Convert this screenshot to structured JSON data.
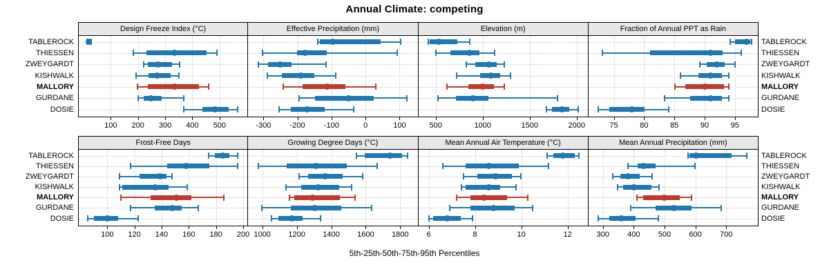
{
  "title": "Annual Climate: competing",
  "xlabel": "5th-25th-50th-75th-95th Percentiles",
  "sites": [
    "TABLEROCK",
    "THIESSEN",
    "ZWEYGARDT",
    "KISHWALK",
    "MALLORY",
    "GURDANE",
    "DOSIE"
  ],
  "highlight_site": "MALLORY",
  "colors": {
    "series_normal": "#1f77b4",
    "series_highlight": "#c0392b",
    "strip_bg": "#e7e7e7",
    "grid": "#c9c9c9",
    "border": "#000000"
  },
  "chart_data": [
    {
      "panel": "Design Freeze Index (°C)",
      "type": "scatter",
      "marker": "5-25-50-75-95 percentile whisker",
      "row": 0,
      "col": 0,
      "xlim": [
        -20,
        605
      ],
      "ticks": [
        100,
        200,
        300,
        400,
        500
      ],
      "series": [
        {
          "name": "TABLEROCK",
          "percentiles": [
            12,
            15,
            20,
            25,
            29
          ]
        },
        {
          "name": "THIESSEN",
          "percentiles": [
            183,
            232,
            334,
            453,
            491
          ]
        },
        {
          "name": "ZWEYGARDT",
          "percentiles": [
            219,
            236,
            272,
            325,
            355
          ]
        },
        {
          "name": "KISHWALK",
          "percentiles": [
            192,
            240,
            270,
            319,
            352
          ]
        },
        {
          "name": "MALLORY",
          "percentiles": [
            196,
            236,
            334,
            423,
            461
          ]
        },
        {
          "name": "GURDANE",
          "percentiles": [
            200,
            221,
            249,
            287,
            370
          ]
        },
        {
          "name": "DOSIE",
          "percentiles": [
            367,
            437,
            483,
            534,
            567
          ]
        }
      ]
    },
    {
      "panel": "Effective Precipitation (mm)",
      "type": "scatter",
      "marker": "5-25-50-75-95 percentile whisker",
      "row": 0,
      "col": 1,
      "xlim": [
        -345,
        155
      ],
      "ticks": [
        -300,
        -200,
        -100,
        0,
        100
      ],
      "series": [
        {
          "name": "TABLEROCK",
          "percentiles": [
            -141,
            -135,
            -97,
            45,
            105
          ]
        },
        {
          "name": "THIESSEN",
          "percentiles": [
            -303,
            -201,
            -178,
            -114,
            95
          ]
        },
        {
          "name": "ZWEYGARDT",
          "percentiles": [
            -317,
            -286,
            -251,
            -218,
            -115
          ]
        },
        {
          "name": "KISHWALK",
          "percentiles": [
            -290,
            -246,
            -190,
            -151,
            -87
          ]
        },
        {
          "name": "MALLORY",
          "percentiles": [
            -242,
            -185,
            -114,
            -60,
            31
          ]
        },
        {
          "name": "GURDANE",
          "percentiles": [
            -197,
            -148,
            -51,
            25,
            123
          ]
        },
        {
          "name": "DOSIE",
          "percentiles": [
            -256,
            -219,
            -172,
            -121,
            -33
          ]
        }
      ]
    },
    {
      "panel": "Elevation (m)",
      "type": "scatter",
      "marker": "5-25-50-75-95 percentile whisker",
      "row": 0,
      "col": 2,
      "xlim": [
        315,
        2125
      ],
      "ticks": [
        500,
        1000,
        1500,
        2000
      ],
      "series": [
        {
          "name": "TABLEROCK",
          "percentiles": [
            421,
            439,
            532,
            729,
            864
          ]
        },
        {
          "name": "THIESSEN",
          "percentiles": [
            502,
            655,
            859,
            969,
            1134
          ]
        },
        {
          "name": "ZWEYGARDT",
          "percentiles": [
            822,
            925,
            1068,
            1146,
            1232
          ]
        },
        {
          "name": "KISHWALK",
          "percentiles": [
            716,
            974,
            1085,
            1183,
            1301
          ]
        },
        {
          "name": "MALLORY",
          "percentiles": [
            618,
            851,
            999,
            1122,
            1232
          ]
        },
        {
          "name": "GURDANE",
          "percentiles": [
            520,
            716,
            896,
            1060,
            1797
          ]
        },
        {
          "name": "DOSIE",
          "percentiles": [
            1674,
            1736,
            1846,
            1920,
            2018
          ]
        }
      ]
    },
    {
      "panel": "Fraction of Annual PPT as Rain",
      "type": "scatter",
      "marker": "5-25-50-75-95 percentile whisker",
      "row": 0,
      "col": 3,
      "xlim": [
        70.8,
        98.9
      ],
      "ticks": [
        75,
        80,
        85,
        90,
        95
      ],
      "series": [
        {
          "name": "TABLEROCK",
          "percentiles": [
            94.2,
            95.0,
            96.9,
            97.5,
            97.8
          ]
        },
        {
          "name": "THIESSEN",
          "percentiles": [
            73.1,
            81,
            91,
            93,
            96.1
          ]
        },
        {
          "name": "ZWEYGARDT",
          "percentiles": [
            89.1,
            90.3,
            92,
            93.3,
            95.1
          ]
        },
        {
          "name": "KISHWALK",
          "percentiles": [
            86,
            89,
            91,
            92.9,
            94
          ]
        },
        {
          "name": "MALLORY",
          "percentiles": [
            85,
            86.8,
            90,
            93.2,
            94
          ]
        },
        {
          "name": "GURDANE",
          "percentiles": [
            83.3,
            87.6,
            91,
            92.9,
            94
          ]
        },
        {
          "name": "DOSIE",
          "percentiles": [
            72.4,
            74.2,
            78,
            80.1,
            84.1
          ]
        }
      ]
    },
    {
      "panel": "Frost-Free Days",
      "type": "scatter",
      "marker": "5-25-50-75-95 percentile whisker",
      "row": 1,
      "col": 0,
      "xlim": [
        78.5,
        203.7
      ],
      "ticks": [
        100,
        120,
        140,
        160,
        180,
        200
      ],
      "series": [
        {
          "name": "TABLEROCK",
          "percentiles": [
            174.5,
            179,
            185,
            190,
            196
          ]
        },
        {
          "name": "THIESSEN",
          "percentiles": [
            117,
            144,
            158,
            175,
            196
          ]
        },
        {
          "name": "ZWEYGARDT",
          "percentiles": [
            109,
            124,
            139,
            143.5,
            148
          ]
        },
        {
          "name": "KISHWALK",
          "percentiles": [
            109,
            111,
            135,
            145,
            159
          ]
        },
        {
          "name": "MALLORY",
          "percentiles": [
            110,
            132,
            151,
            162,
            186
          ]
        },
        {
          "name": "GURDANE",
          "percentiles": [
            117,
            135,
            148,
            155,
            167
          ]
        },
        {
          "name": "DOSIE",
          "percentiles": [
            85.5,
            90,
            100,
            108,
            123
          ]
        }
      ]
    },
    {
      "panel": "Growing Degree Days (°C)",
      "type": "scatter",
      "marker": "5-25-50-75-95 percentile whisker",
      "row": 1,
      "col": 1,
      "xlim": [
        918,
        1905
      ],
      "ticks": [
        1000,
        1200,
        1400,
        1600,
        1800
      ],
      "series": [
        {
          "name": "TABLEROCK",
          "percentiles": [
            1545,
            1595,
            1740,
            1809,
            1846
          ]
        },
        {
          "name": "THIESSEN",
          "percentiles": [
            975,
            1140,
            1310,
            1490,
            1667
          ]
        },
        {
          "name": "ZWEYGARDT",
          "percentiles": [
            1210,
            1265,
            1365,
            1465,
            1585
          ]
        },
        {
          "name": "KISHWALK",
          "percentiles": [
            1135,
            1225,
            1325,
            1445,
            1520
          ]
        },
        {
          "name": "MALLORY",
          "percentiles": [
            1155,
            1185,
            1290,
            1450,
            1540
          ]
        },
        {
          "name": "GURDANE",
          "percentiles": [
            995,
            1165,
            1305,
            1460,
            1635
          ]
        },
        {
          "name": "DOSIE",
          "percentiles": [
            1050,
            1095,
            1170,
            1235,
            1340
          ]
        }
      ]
    },
    {
      "panel": "Mean Annual Air Temperature (°C)",
      "type": "scatter",
      "marker": "5-25-50-75-95 percentile whisker",
      "row": 1,
      "col": 2,
      "xlim": [
        5.55,
        12.9
      ],
      "ticks": [
        6,
        8,
        10,
        12
      ],
      "series": [
        {
          "name": "TABLEROCK",
          "percentiles": [
            11.1,
            11.4,
            11.8,
            12.3,
            12.5
          ]
        },
        {
          "name": "THIESSEN",
          "percentiles": [
            6.6,
            7.6,
            8.6,
            9.9,
            11.2
          ]
        },
        {
          "name": "ZWEYGARDT",
          "percentiles": [
            7.5,
            8.1,
            8.9,
            9.6,
            10.0
          ]
        },
        {
          "name": "KISHWALK",
          "percentiles": [
            7.4,
            7.6,
            8.6,
            9.1,
            9.8
          ]
        },
        {
          "name": "MALLORY",
          "percentiles": [
            7.2,
            7.8,
            8.4,
            9.4,
            10.3
          ]
        },
        {
          "name": "GURDANE",
          "percentiles": [
            6.9,
            7.8,
            8.8,
            9.7,
            10.5
          ]
        },
        {
          "name": "DOSIE",
          "percentiles": [
            6.0,
            6.2,
            6.8,
            7.4,
            7.9
          ]
        }
      ]
    },
    {
      "panel": "Mean Annual Precipitation (mm)",
      "type": "scatter",
      "marker": "5-25-50-75-95 percentile whisker",
      "row": 1,
      "col": 3,
      "xlim": [
        253,
        805
      ],
      "ticks": [
        300,
        400,
        500,
        600,
        700
      ],
      "series": [
        {
          "name": "TABLEROCK",
          "percentiles": [
            575,
            580,
            603,
            718,
            769
          ]
        },
        {
          "name": "THIESSEN",
          "percentiles": [
            380,
            413,
            431,
            470,
            600
          ]
        },
        {
          "name": "ZWEYGARDT",
          "percentiles": [
            330,
            357,
            383,
            420,
            462
          ]
        },
        {
          "name": "KISHWALK",
          "percentiles": [
            346,
            365,
            400,
            457,
            483
          ]
        },
        {
          "name": "MALLORY",
          "percentiles": [
            409,
            430,
            500,
            550,
            589
          ]
        },
        {
          "name": "GURDANE",
          "percentiles": [
            389,
            472,
            531,
            587,
            684
          ]
        },
        {
          "name": "DOSIE",
          "percentiles": [
            284,
            320,
            361,
            405,
            480
          ]
        }
      ]
    }
  ]
}
